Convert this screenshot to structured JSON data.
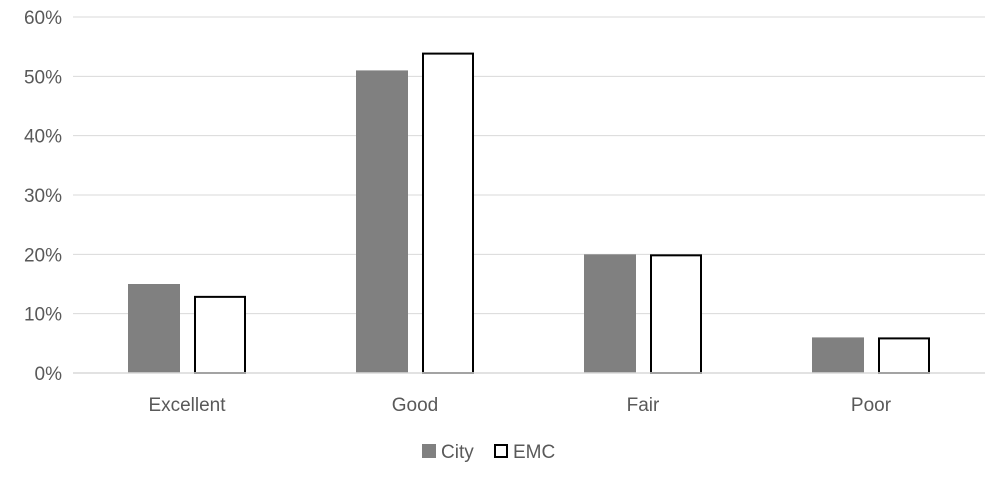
{
  "chart_data": {
    "type": "bar",
    "categories": [
      "Excellent",
      "Good",
      "Fair",
      "Poor"
    ],
    "series": [
      {
        "name": "City",
        "values": [
          15,
          51,
          20,
          6
        ],
        "color": "#808080",
        "stroke": "#808080"
      },
      {
        "name": "EMC",
        "values": [
          13,
          54,
          20,
          6
        ],
        "color": "#ffffff",
        "stroke": "#000000"
      }
    ],
    "unit": "%",
    "ylim": [
      0,
      60
    ],
    "yticks": [
      0,
      10,
      20,
      30,
      40,
      50,
      60
    ],
    "ytick_labels": [
      "0%",
      "10%",
      "20%",
      "30%",
      "40%",
      "50%",
      "60%"
    ],
    "grid": true,
    "gridline_color": "#d9d9d9",
    "legend_position": "bottom-center",
    "title": "",
    "xlabel": "",
    "ylabel": ""
  }
}
